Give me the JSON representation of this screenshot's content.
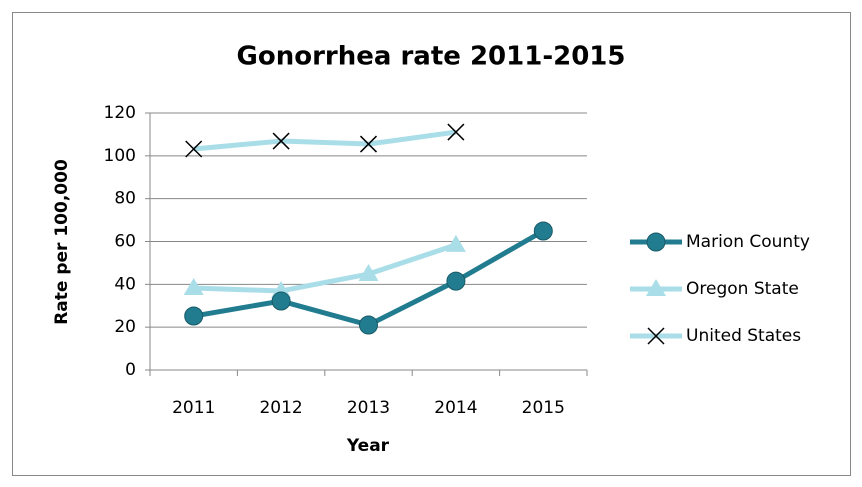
{
  "chart_data": {
    "type": "line",
    "title": "Gonorrhea rate 2011-2015",
    "x_label": "Year",
    "y_label": "Rate per 100,000",
    "categories": [
      "2011",
      "2012",
      "2013",
      "2014",
      "2015"
    ],
    "series": [
      {
        "name": "Marion County",
        "color": "#217c8f",
        "marker": "circle",
        "values": [
          25.2,
          32.2,
          21,
          41.5,
          64.9
        ]
      },
      {
        "name": "Oregon State",
        "color": "#a9dde8",
        "marker": "triangle",
        "values": [
          38.3,
          36.9,
          44.8,
          58.4,
          null
        ]
      },
      {
        "name": "United States",
        "color": "#a9dde8",
        "marker": "x",
        "values": [
          103.2,
          106.9,
          105.5,
          111.1,
          null
        ]
      }
    ],
    "ylim": [
      0,
      120
    ],
    "yticks": [
      0,
      20,
      40,
      60,
      80,
      100,
      120
    ],
    "grid": true,
    "legend": "right"
  }
}
